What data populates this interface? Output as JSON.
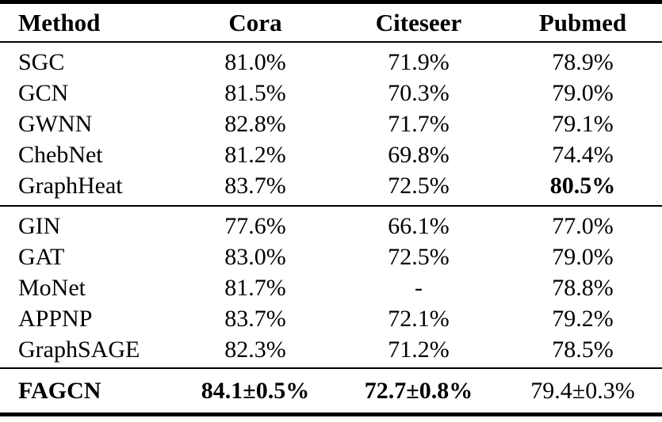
{
  "table": {
    "columns": [
      {
        "label": "Method"
      },
      {
        "label": "Cora"
      },
      {
        "label": "Citeseer"
      },
      {
        "label": "Pubmed"
      }
    ],
    "blocks": [
      {
        "rows": [
          {
            "method": "SGC",
            "cora": "81.0%",
            "citeseer": "71.9%",
            "pubmed": "78.9%"
          },
          {
            "method": "GCN",
            "cora": "81.5%",
            "citeseer": "70.3%",
            "pubmed": "79.0%"
          },
          {
            "method": "GWNN",
            "cora": "82.8%",
            "citeseer": "71.7%",
            "pubmed": "79.1%"
          },
          {
            "method": "ChebNet",
            "cora": "81.2%",
            "citeseer": "69.8%",
            "pubmed": "74.4%"
          },
          {
            "method": "GraphHeat",
            "cora": "83.7%",
            "citeseer": "72.5%",
            "pubmed": "80.5%"
          }
        ]
      },
      {
        "rows": [
          {
            "method": "GIN",
            "cora": "77.6%",
            "citeseer": "66.1%",
            "pubmed": "77.0%"
          },
          {
            "method": "GAT",
            "cora": "83.0%",
            "citeseer": "72.5%",
            "pubmed": "79.0%"
          },
          {
            "method": "MoNet",
            "cora": "81.7%",
            "citeseer": "-",
            "pubmed": "78.8%"
          },
          {
            "method": "APPNP",
            "cora": "83.7%",
            "citeseer": "72.1%",
            "pubmed": "79.2%"
          },
          {
            "method": "GraphSAGE",
            "cora": "82.3%",
            "citeseer": "71.2%",
            "pubmed": "78.5%"
          }
        ]
      }
    ],
    "footer": {
      "method": "FAGCN",
      "cora": "84.1±0.5%",
      "citeseer": "72.7±0.8%",
      "pubmed": "79.4±0.3%"
    },
    "bold_cells_note": {
      "header": "all",
      "block_1_graphheat_pubmed": true,
      "footer_method": true,
      "footer_cora": true,
      "footer_citeseer": true,
      "footer_pubmed": false
    }
  },
  "colors": {
    "text": "#000000",
    "background": "#ffffff",
    "rule": "#000000"
  }
}
